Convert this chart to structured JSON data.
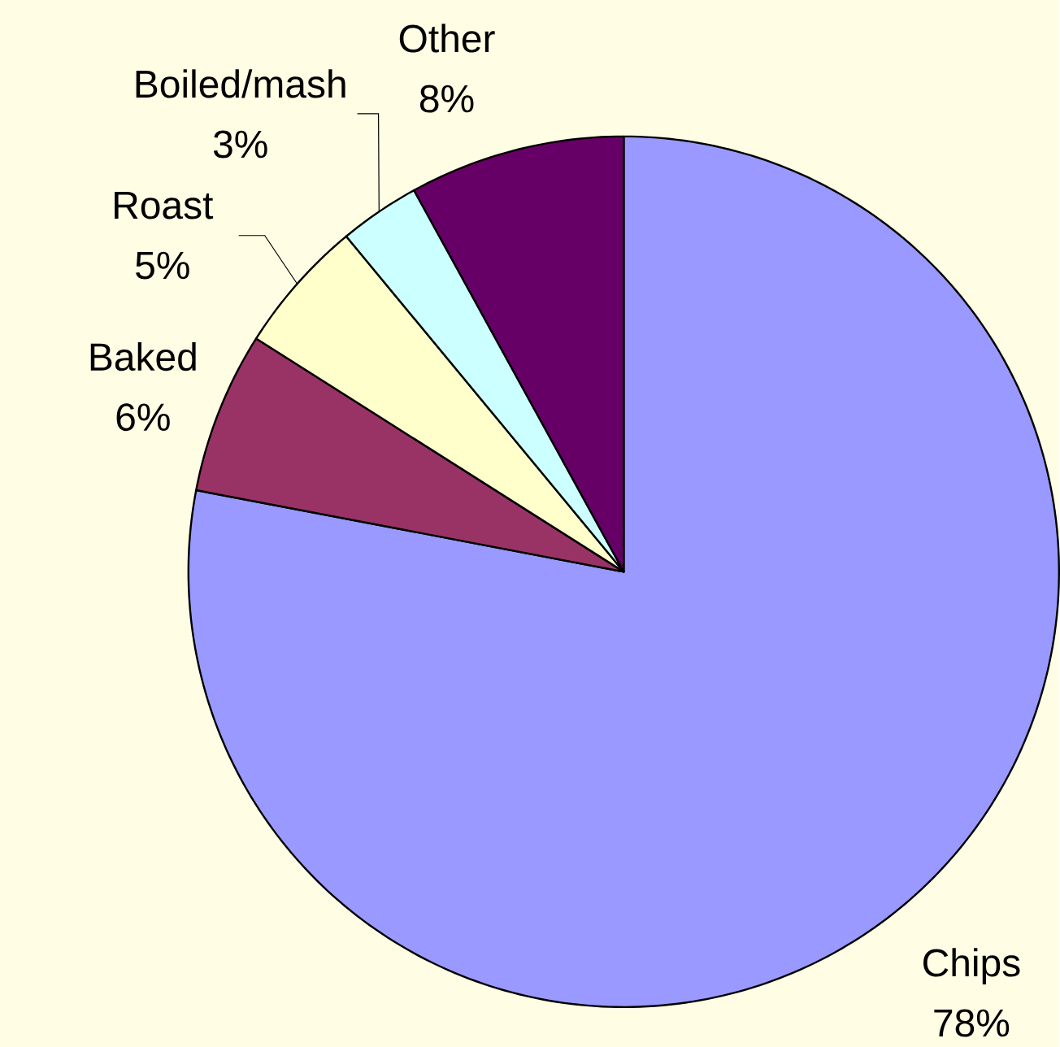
{
  "chart_data": {
    "type": "pie",
    "categories": [
      "Chips",
      "Baked",
      "Roast",
      "Boiled/mash",
      "Other"
    ],
    "values": [
      78,
      6,
      5,
      3,
      8
    ],
    "colors": [
      "#9999ff",
      "#993366",
      "#ffffcc",
      "#ccffff",
      "#660066"
    ],
    "value_labels": [
      "78%",
      "6%",
      "5%",
      "3%",
      "8%"
    ]
  }
}
